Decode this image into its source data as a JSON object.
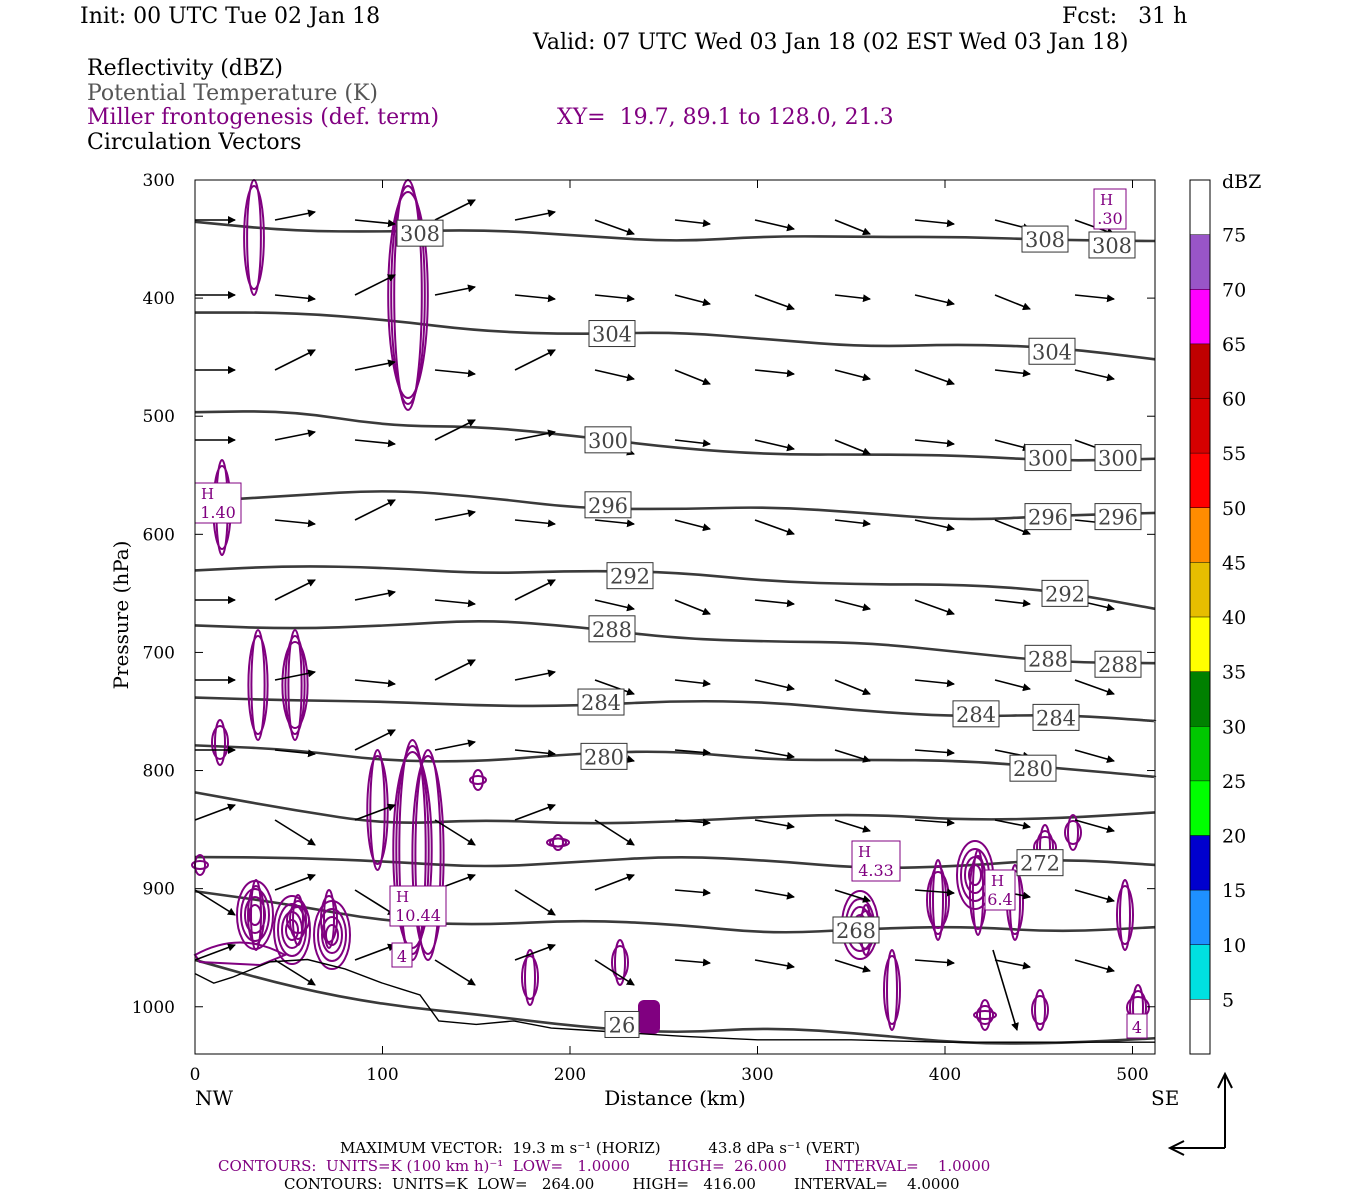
{
  "header": {
    "init": "Init: 00 UTC Tue 02 Jan 18",
    "fcst": "Fcst:   31 h",
    "valid": "Valid: 07 UTC Wed 03 Jan 18 (02 EST Wed 03 Jan 18)",
    "field1": "Reflectivity (dBZ)",
    "field2": "Potential Temperature (K)",
    "field3": "Miller frontogenesis (def. term)",
    "xy": "XY=  19.7, 89.1 to 128.0, 21.3",
    "field4": "Circulation Vectors"
  },
  "colors": {
    "theta_contour": "#3a3a3a",
    "frontogenesis_contour": "#800080",
    "terrain": "#000000"
  },
  "chart_data": {
    "type": "cross-section",
    "xlabel": "Distance (km)",
    "ylabel": "Pressure (hPa)",
    "xlim": [
      0,
      512
    ],
    "ylim": [
      300,
      1040
    ],
    "x_ticks": [
      "0",
      "100",
      "200",
      "300",
      "400",
      "500"
    ],
    "y_ticks": [
      "300",
      "400",
      "500",
      "600",
      "700",
      "800",
      "900",
      "1000"
    ],
    "x_end_labels": {
      "left": "NW",
      "right": "SE"
    },
    "colorbar": {
      "title": "dBZ",
      "levels": [
        "5",
        "10",
        "15",
        "20",
        "25",
        "30",
        "35",
        "40",
        "45",
        "50",
        "55",
        "60",
        "65",
        "70",
        "75"
      ],
      "colors": [
        "#ffffff",
        "#00e0e0",
        "#1e90ff",
        "#0000cd",
        "#00ff00",
        "#00c800",
        "#008000",
        "#ffff00",
        "#e6be00",
        "#ff8c00",
        "#ff0000",
        "#d60000",
        "#c00000",
        "#ff00ff",
        "#9955c8",
        "#ffffff"
      ]
    },
    "theta_contours": [
      {
        "value": 308,
        "pressures": [
          335,
          340,
          345,
          345,
          345,
          350,
          350,
          350,
          345,
          350,
          355
        ],
        "labels": [
          "308",
          "308",
          "308"
        ]
      },
      {
        "value": 304,
        "pressures": [
          410,
          415,
          420,
          425,
          430,
          432,
          435,
          438,
          440,
          445,
          450
        ],
        "labels": [
          "304",
          "304"
        ]
      },
      {
        "value": 300,
        "pressures": [
          500,
          495,
          505,
          510,
          520,
          525,
          530,
          535,
          535,
          535,
          535
        ],
        "labels": [
          "300",
          "300",
          "300"
        ]
      },
      {
        "value": 296,
        "pressures": [
          570,
          565,
          565,
          570,
          575,
          578,
          580,
          582,
          585,
          585,
          585
        ],
        "labels": [
          "296",
          "296",
          "296"
        ]
      },
      {
        "value": 292,
        "pressures": [
          630,
          630,
          628,
          630,
          632,
          635,
          638,
          640,
          645,
          650,
          660
        ],
        "labels": [
          "292",
          "292"
        ]
      },
      {
        "value": 288,
        "pressures": [
          680,
          678,
          675,
          675,
          680,
          685,
          690,
          695,
          700,
          705,
          710
        ],
        "labels": [
          "288",
          "288",
          "288"
        ]
      },
      {
        "value": 284,
        "pressures": [
          735,
          740,
          745,
          745,
          742,
          742,
          745,
          748,
          752,
          755,
          760
        ],
        "labels": [
          "284",
          "284",
          "284"
        ]
      },
      {
        "value": 280,
        "pressures": [
          780,
          785,
          790,
          790,
          788,
          785,
          788,
          790,
          795,
          798,
          802
        ],
        "labels": [
          "280",
          "280"
        ]
      },
      {
        "value": 276,
        "pressures": [
          820,
          830,
          845,
          845,
          845,
          840,
          840,
          840,
          840,
          838,
          838
        ],
        "labels": []
      },
      {
        "value": 272,
        "pressures": [
          870,
          875,
          880,
          880,
          875,
          875,
          878,
          880,
          880,
          878,
          880
        ],
        "labels": [
          "272"
        ]
      },
      {
        "value": 268,
        "pressures": [
          905,
          915,
          925,
          930,
          930,
          930,
          935,
          935,
          935,
          935,
          930
        ],
        "labels": [
          "268"
        ]
      },
      {
        "value": 264,
        "pressures": [
          960,
          980,
          1000,
          1010,
          1015,
          1020,
          1020,
          1025,
          1028,
          1030,
          1030
        ],
        "labels": [
          "26"
        ]
      }
    ],
    "frontogenesis_maxima": [
      {
        "label": "H",
        "value": "1.40"
      },
      {
        "label": "H",
        "value": "10.44"
      },
      {
        "label": "H",
        "value": "4.33"
      },
      {
        "label": "H",
        "value": "6.4"
      },
      {
        "label": "H",
        "value": ".30"
      }
    ],
    "frontogenesis_other_labels": [
      "4",
      "4"
    ]
  },
  "footer": {
    "line1": "MAXIMUM VECTOR:  19.3 m s⁻¹ (HORIZ)          43.8 dPa s⁻¹ (VERT)",
    "line2": "CONTOURS:  UNITS=K (100 km h)⁻¹  LOW=   1.0000        HIGH=  26.000        INTERVAL=    1.0000",
    "line3": "CONTOURS:  UNITS=K  LOW=   264.00        HIGH=   416.00        INTERVAL=    4.0000"
  }
}
